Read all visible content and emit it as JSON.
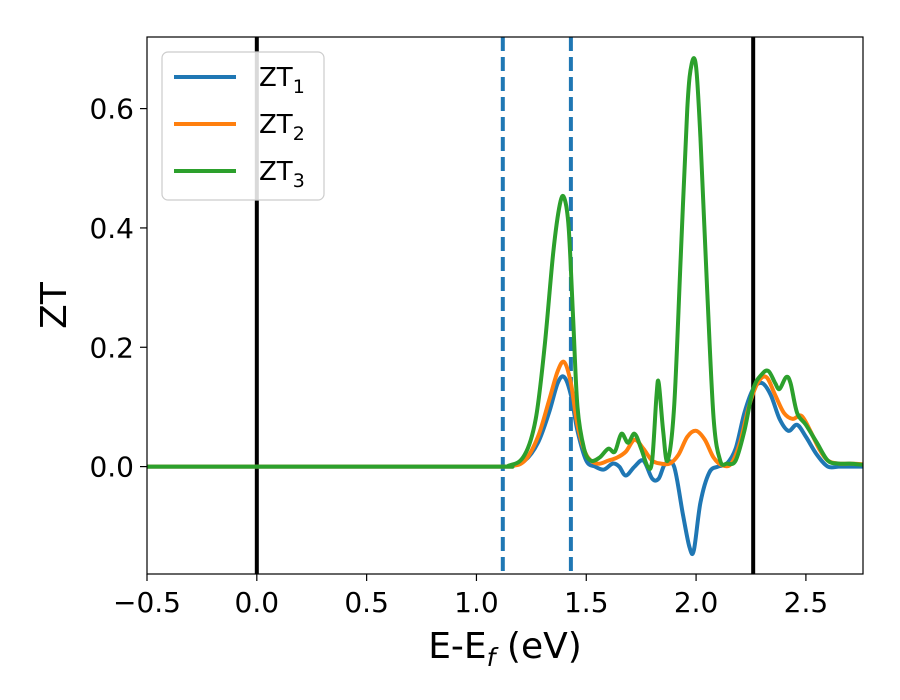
{
  "chart_data": {
    "type": "line",
    "xlabel": "E-E",
    "xlabel_sub": "f",
    "xlabel_unit": " (eV)",
    "ylabel": "ZT",
    "xlim": [
      -0.5,
      2.76
    ],
    "ylim": [
      -0.18,
      0.72
    ],
    "x_ticks": [
      -0.5,
      0.0,
      0.5,
      1.0,
      1.5,
      2.0,
      2.5
    ],
    "x_tick_labels": [
      "−0.5",
      "0.0",
      "0.5",
      "1.0",
      "1.5",
      "2.0",
      "2.5"
    ],
    "y_ticks": [
      0.0,
      0.2,
      0.4,
      0.6
    ],
    "y_tick_labels": [
      "0.0",
      "0.2",
      "0.4",
      "0.6"
    ],
    "grid": false,
    "legend_position": "top-left",
    "colors": {
      "zt1": "#1f77b4",
      "zt2": "#ff7f0e",
      "zt3": "#2ca02c",
      "vline": "#000000",
      "dashed": "#1f77b4"
    },
    "vlines_solid": [
      0.0,
      2.26
    ],
    "vlines_dashed": [
      1.12,
      1.43
    ],
    "series": [
      {
        "name": "ZT",
        "sub": "1",
        "color": "#1f77b4",
        "x": [
          -0.5,
          1.0,
          1.15,
          1.22,
          1.28,
          1.33,
          1.37,
          1.4,
          1.43,
          1.46,
          1.5,
          1.54,
          1.58,
          1.62,
          1.65,
          1.68,
          1.72,
          1.76,
          1.8,
          1.83,
          1.86,
          1.9,
          1.94,
          1.97,
          1.99,
          2.02,
          2.06,
          2.1,
          2.14,
          2.18,
          2.22,
          2.26,
          2.3,
          2.34,
          2.38,
          2.42,
          2.46,
          2.5,
          2.55,
          2.6,
          2.65,
          2.7,
          2.76
        ],
        "y": [
          0.0,
          0.0,
          0.001,
          0.01,
          0.04,
          0.09,
          0.14,
          0.15,
          0.12,
          0.06,
          0.01,
          0.0,
          -0.005,
          0.005,
          0.0,
          -0.015,
          0.0,
          0.01,
          -0.02,
          -0.02,
          0.005,
          0.0,
          -0.08,
          -0.135,
          -0.14,
          -0.06,
          -0.01,
          0.0,
          0.005,
          0.03,
          0.09,
          0.13,
          0.14,
          0.12,
          0.08,
          0.06,
          0.07,
          0.05,
          0.02,
          0.0,
          0.0,
          0.0,
          0.0
        ]
      },
      {
        "name": "ZT",
        "sub": "2",
        "color": "#ff7f0e",
        "x": [
          -0.5,
          1.0,
          1.15,
          1.22,
          1.28,
          1.33,
          1.37,
          1.4,
          1.43,
          1.46,
          1.5,
          1.55,
          1.6,
          1.64,
          1.68,
          1.72,
          1.76,
          1.8,
          1.84,
          1.88,
          1.92,
          1.96,
          2.0,
          2.04,
          2.08,
          2.12,
          2.16,
          2.2,
          2.24,
          2.28,
          2.32,
          2.36,
          2.4,
          2.44,
          2.48,
          2.52,
          2.56,
          2.6,
          2.65,
          2.7,
          2.76
        ],
        "y": [
          0.0,
          0.0,
          0.001,
          0.01,
          0.05,
          0.11,
          0.16,
          0.175,
          0.14,
          0.07,
          0.02,
          0.005,
          0.01,
          0.015,
          0.025,
          0.045,
          0.03,
          0.01,
          0.005,
          0.005,
          0.02,
          0.05,
          0.06,
          0.045,
          0.015,
          0.002,
          0.005,
          0.04,
          0.1,
          0.14,
          0.15,
          0.12,
          0.09,
          0.08,
          0.085,
          0.06,
          0.03,
          0.01,
          0.005,
          0.005,
          0.004
        ]
      },
      {
        "name": "ZT",
        "sub": "3",
        "color": "#2ca02c",
        "x": [
          -0.5,
          1.0,
          1.15,
          1.22,
          1.27,
          1.31,
          1.35,
          1.38,
          1.4,
          1.42,
          1.44,
          1.46,
          1.49,
          1.52,
          1.56,
          1.6,
          1.63,
          1.66,
          1.69,
          1.72,
          1.75,
          1.78,
          1.8,
          1.82,
          1.83,
          1.85,
          1.87,
          1.9,
          1.93,
          1.96,
          1.98,
          2.0,
          2.02,
          2.05,
          2.08,
          2.11,
          2.14,
          2.18,
          2.22,
          2.26,
          2.3,
          2.33,
          2.36,
          2.38,
          2.41,
          2.43,
          2.46,
          2.5,
          2.55,
          2.6,
          2.65,
          2.7,
          2.76
        ],
        "y": [
          0.0,
          0.0,
          0.002,
          0.02,
          0.08,
          0.2,
          0.36,
          0.44,
          0.45,
          0.4,
          0.25,
          0.1,
          0.03,
          0.01,
          0.015,
          0.03,
          0.025,
          0.055,
          0.04,
          0.055,
          0.03,
          0.0,
          0.01,
          0.12,
          0.14,
          0.06,
          0.01,
          0.1,
          0.35,
          0.6,
          0.675,
          0.67,
          0.55,
          0.3,
          0.08,
          0.01,
          0.005,
          0.01,
          0.06,
          0.13,
          0.155,
          0.16,
          0.14,
          0.13,
          0.15,
          0.14,
          0.09,
          0.07,
          0.04,
          0.01,
          0.005,
          0.005,
          0.003
        ]
      }
    ]
  }
}
